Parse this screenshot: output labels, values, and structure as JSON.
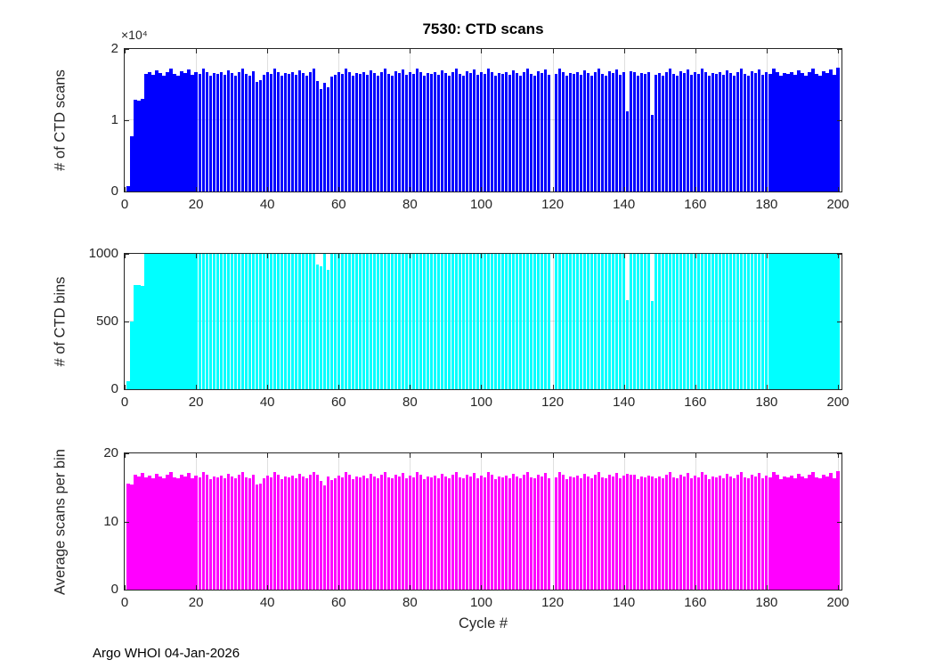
{
  "figure": {
    "title": "7530: CTD scans",
    "footer": "Argo WHOI 04-Jan-2026"
  },
  "x_axis": {
    "label": "Cycle #",
    "range": [
      0,
      201
    ],
    "ticks": [
      0,
      20,
      40,
      60,
      80,
      100,
      120,
      140,
      160,
      180,
      200
    ]
  },
  "chart_data": [
    {
      "type": "bar",
      "title": "7530: CTD scans",
      "ylabel": "# of CTD scans",
      "y_exponent": "×10⁴",
      "bar_color": "#0000ff",
      "ylim": [
        0,
        20000
      ],
      "y_ticks": [
        0,
        10000,
        20000
      ],
      "y_tick_labels": [
        "0",
        "1",
        "2"
      ],
      "x_start_cycle": 1,
      "values": [
        700,
        7700,
        12900,
        12800,
        13000,
        16500,
        16700,
        16400,
        17000,
        16600,
        16300,
        16800,
        17200,
        16500,
        16300,
        16900,
        16600,
        17100,
        16400,
        16700,
        16500,
        17300,
        16800,
        16200,
        16600,
        16500,
        16700,
        16400,
        17000,
        16600,
        16300,
        16800,
        17200,
        16500,
        16300,
        16900,
        15400,
        15600,
        16400,
        16700,
        16500,
        17300,
        16800,
        16200,
        16600,
        16500,
        16700,
        16400,
        17000,
        16600,
        16300,
        16800,
        17200,
        15500,
        14400,
        15300,
        14600,
        16100,
        16400,
        16700,
        16500,
        17300,
        16800,
        16200,
        16600,
        16500,
        16700,
        16400,
        17000,
        16600,
        16300,
        16800,
        17200,
        16500,
        16300,
        16900,
        16600,
        17100,
        16400,
        16700,
        16500,
        17300,
        16800,
        16200,
        16600,
        16500,
        16700,
        16400,
        17000,
        16600,
        16300,
        16800,
        17200,
        16500,
        16300,
        16900,
        16600,
        17100,
        16400,
        16700,
        16500,
        17300,
        16800,
        16200,
        16600,
        16500,
        16700,
        16400,
        17000,
        16600,
        16300,
        16800,
        17200,
        16500,
        16300,
        16900,
        16600,
        17100,
        16400,
        0,
        16500,
        17300,
        16800,
        16200,
        16600,
        16500,
        16700,
        16400,
        17000,
        16600,
        16300,
        16800,
        17200,
        16500,
        16300,
        16900,
        16600,
        17100,
        16400,
        16700,
        11200,
        16900,
        16800,
        16200,
        16600,
        16500,
        16700,
        10800,
        16400,
        16600,
        16300,
        16800,
        17200,
        16500,
        16300,
        16900,
        16600,
        17100,
        16400,
        16700,
        16500,
        17300,
        16800,
        16200,
        16600,
        16500,
        16700,
        16400,
        17000,
        16600,
        16300,
        16800,
        17200,
        16500,
        16300,
        16900,
        16600,
        17100,
        16400,
        16700,
        16500,
        17300,
        16800,
        16200,
        16600,
        16500,
        16700,
        16400,
        17000,
        16600,
        16300,
        16800,
        17200,
        16500,
        16300,
        16900,
        16600,
        17100,
        16400,
        17400
      ]
    },
    {
      "type": "bar",
      "ylabel": "# of CTD bins",
      "bar_color": "#00ffff",
      "ylim": [
        0,
        1000
      ],
      "y_ticks": [
        0,
        500,
        1000
      ],
      "y_tick_labels": [
        "0",
        "500",
        "1000"
      ],
      "x_start_cycle": 1,
      "values": [
        60,
        500,
        770,
        770,
        760,
        1000,
        1000,
        1000,
        1000,
        1000,
        1000,
        1000,
        1000,
        1000,
        1000,
        1000,
        1000,
        1000,
        1000,
        1000,
        1000,
        1000,
        1000,
        1000,
        1000,
        1000,
        1000,
        1000,
        1000,
        1000,
        1000,
        1000,
        1000,
        1000,
        1000,
        1000,
        1000,
        1000,
        1000,
        1000,
        1000,
        1000,
        1000,
        1000,
        1000,
        1000,
        1000,
        1000,
        1000,
        1000,
        1000,
        1000,
        1000,
        920,
        905,
        1000,
        880,
        1000,
        1000,
        1000,
        1000,
        1000,
        1000,
        1000,
        1000,
        1000,
        1000,
        1000,
        1000,
        1000,
        1000,
        1000,
        1000,
        1000,
        1000,
        1000,
        1000,
        1000,
        1000,
        1000,
        1000,
        1000,
        1000,
        1000,
        1000,
        1000,
        1000,
        1000,
        1000,
        1000,
        1000,
        1000,
        1000,
        1000,
        1000,
        1000,
        1000,
        1000,
        1000,
        1000,
        1000,
        1000,
        1000,
        1000,
        1000,
        1000,
        1000,
        1000,
        1000,
        1000,
        1000,
        1000,
        1000,
        1000,
        1000,
        1000,
        1000,
        1000,
        1000,
        0,
        1000,
        1000,
        1000,
        1000,
        1000,
        1000,
        1000,
        1000,
        1000,
        1000,
        1000,
        1000,
        1000,
        1000,
        1000,
        1000,
        1000,
        1000,
        1000,
        1000,
        660,
        1000,
        1000,
        1000,
        1000,
        1000,
        1000,
        650,
        1000,
        1000,
        1000,
        1000,
        1000,
        1000,
        1000,
        1000,
        1000,
        1000,
        1000,
        1000,
        1000,
        1000,
        1000,
        1000,
        1000,
        1000,
        1000,
        1000,
        1000,
        1000,
        1000,
        1000,
        1000,
        1000,
        1000,
        1000,
        1000,
        1000,
        1000,
        1000,
        1000,
        1000,
        1000,
        1000,
        1000,
        1000,
        1000,
        1000,
        1000,
        1000,
        1000,
        1000,
        1000,
        1000,
        1000,
        1000,
        1000,
        1000,
        1000,
        1000
      ]
    },
    {
      "type": "bar",
      "ylabel": "Average scans per bin",
      "xlabel": "Cycle #",
      "bar_color": "#ff00ff",
      "ylim": [
        0,
        20
      ],
      "y_ticks": [
        0,
        10,
        20
      ],
      "y_tick_labels": [
        "0",
        "10",
        "20"
      ],
      "x_start_cycle": 1,
      "values": [
        15.6,
        15.4,
        16.8,
        16.6,
        17.1,
        16.5,
        16.7,
        16.4,
        17.0,
        16.6,
        16.3,
        16.8,
        17.2,
        16.5,
        16.3,
        16.9,
        16.6,
        17.1,
        16.4,
        16.7,
        16.5,
        17.3,
        16.8,
        16.2,
        16.6,
        16.5,
        16.7,
        16.4,
        17.0,
        16.6,
        16.3,
        16.8,
        17.2,
        16.5,
        16.3,
        16.9,
        15.4,
        15.6,
        16.4,
        16.7,
        16.5,
        17.3,
        16.8,
        16.2,
        16.6,
        16.5,
        16.7,
        16.4,
        17.0,
        16.6,
        16.3,
        16.8,
        17.2,
        16.8,
        15.9,
        15.3,
        16.6,
        16.1,
        16.4,
        16.7,
        16.5,
        17.3,
        16.8,
        16.2,
        16.6,
        16.5,
        16.7,
        16.4,
        17.0,
        16.6,
        16.3,
        16.8,
        17.2,
        16.5,
        16.3,
        16.9,
        16.6,
        17.1,
        16.4,
        16.7,
        16.5,
        17.3,
        16.8,
        16.2,
        16.6,
        16.5,
        16.7,
        16.4,
        17.0,
        16.6,
        16.3,
        16.8,
        17.2,
        16.5,
        16.3,
        16.9,
        16.6,
        17.1,
        16.4,
        16.7,
        16.5,
        17.3,
        16.8,
        16.2,
        16.6,
        16.5,
        16.7,
        16.4,
        17.0,
        16.6,
        16.3,
        16.8,
        17.2,
        16.5,
        16.3,
        16.9,
        16.6,
        17.1,
        16.4,
        0,
        16.5,
        17.3,
        16.8,
        16.2,
        16.6,
        16.5,
        16.7,
        16.4,
        17.0,
        16.6,
        16.3,
        16.8,
        17.2,
        16.5,
        16.3,
        16.9,
        16.6,
        17.1,
        16.4,
        16.7,
        17.0,
        16.9,
        16.8,
        16.2,
        16.6,
        16.5,
        16.7,
        16.6,
        16.4,
        16.6,
        16.3,
        16.8,
        17.2,
        16.5,
        16.3,
        16.9,
        16.6,
        17.1,
        16.4,
        16.7,
        16.5,
        17.3,
        16.8,
        16.2,
        16.6,
        16.5,
        16.7,
        16.4,
        17.0,
        16.6,
        16.3,
        16.8,
        17.2,
        16.5,
        16.3,
        16.9,
        16.6,
        17.1,
        16.4,
        16.7,
        16.5,
        17.3,
        16.8,
        16.2,
        16.6,
        16.5,
        16.7,
        16.4,
        17.0,
        16.6,
        16.3,
        16.8,
        17.2,
        16.5,
        16.3,
        16.9,
        16.6,
        17.1,
        16.4,
        17.4
      ]
    }
  ],
  "footer": "Argo WHOI 04-Jan-2026"
}
